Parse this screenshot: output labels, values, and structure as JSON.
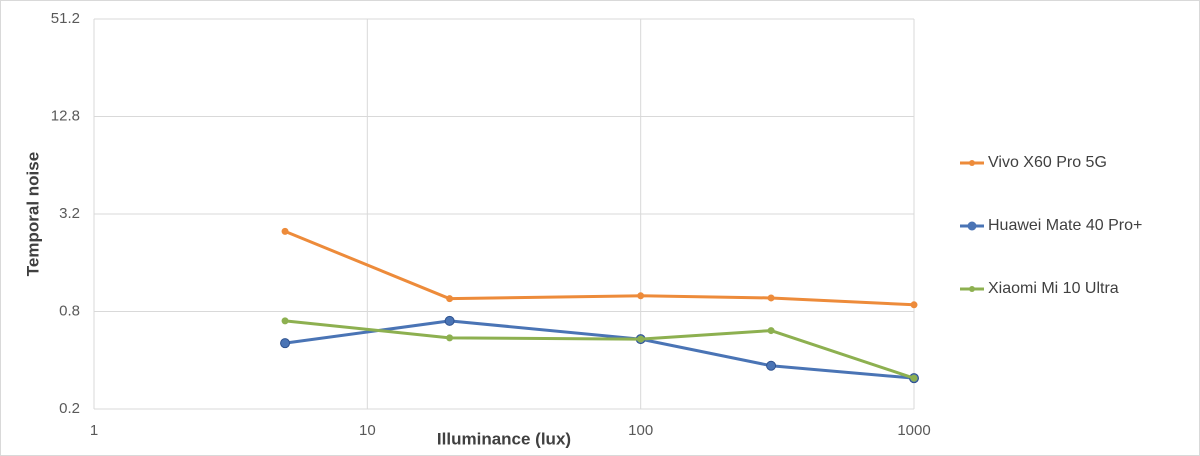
{
  "chart_data": {
    "type": "line",
    "x_label": "Illuminance (lux)",
    "y_label": "Temporal noise",
    "x": [
      5,
      20,
      100,
      300,
      1000
    ],
    "xscale": "log",
    "yscale": "log",
    "xlim": [
      1,
      1000
    ],
    "xticks": [
      1,
      10,
      100,
      1000
    ],
    "ylim": [
      0.2,
      51.2
    ],
    "yticks": [
      0.2,
      0.8,
      3.2,
      12.8,
      51.2
    ],
    "grid": true,
    "legend": "right",
    "series": [
      {
        "name": "Vivo X60 Pro 5G",
        "color": "#ed8b3a",
        "values": [
          2.5,
          0.96,
          1.0,
          0.97,
          0.88
        ]
      },
      {
        "name": "Huawei Mate 40 Pro+",
        "color": "#4a74b5",
        "values": [
          0.51,
          0.7,
          0.54,
          0.37,
          0.31
        ]
      },
      {
        "name": "Xiaomi Mi 10 Ultra",
        "color": "#8db050",
        "values": [
          0.7,
          0.55,
          0.54,
          0.61,
          0.31
        ]
      }
    ]
  }
}
